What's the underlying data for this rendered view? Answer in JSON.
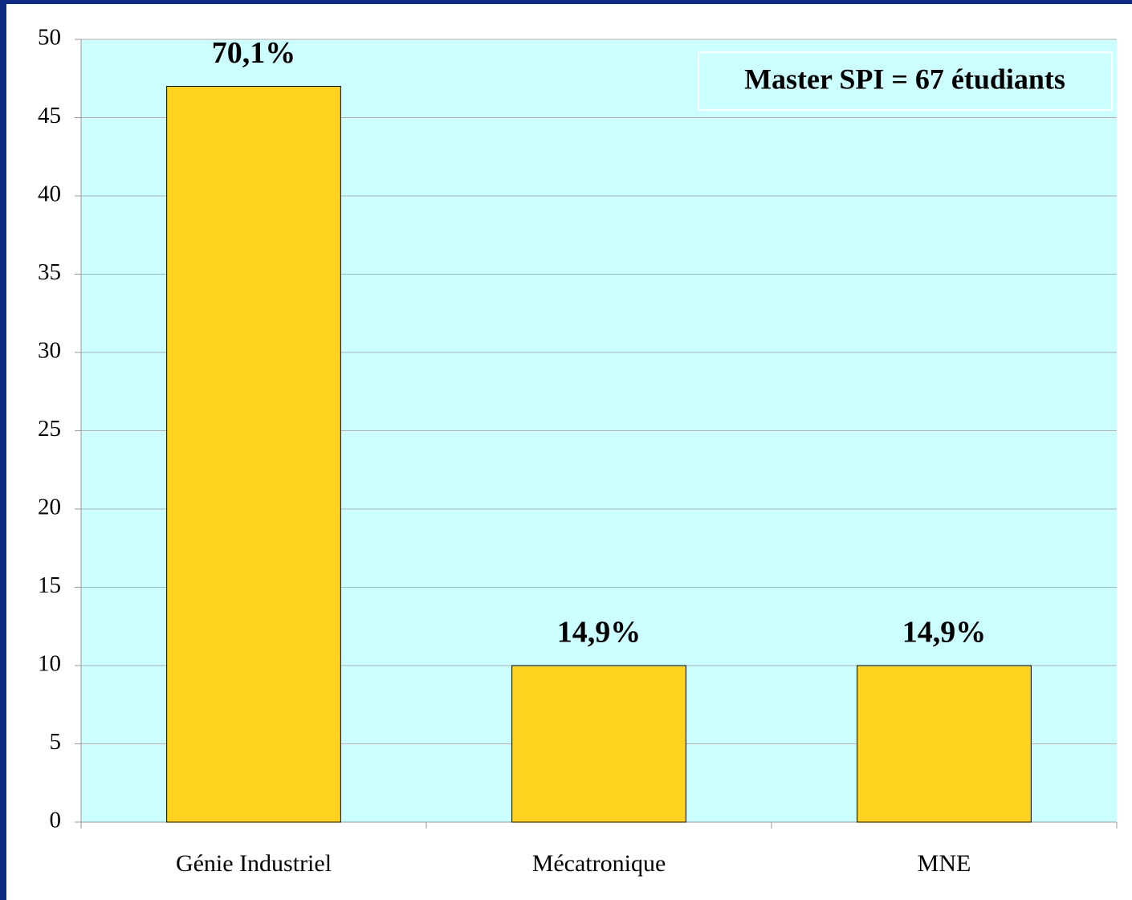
{
  "chart_data": {
    "type": "bar",
    "categories": [
      "Génie Industriel",
      "Mécatronique",
      "MNE"
    ],
    "values": [
      47,
      10,
      10
    ],
    "bar_labels": [
      "70,1%",
      "14,9%",
      "14,9%"
    ],
    "annotations": [
      "Master SPI = 67 étudiants"
    ],
    "color": "#ffd320",
    "plot_background": "#ccffff",
    "ylim": [
      0,
      50
    ],
    "yticks": [
      0,
      5,
      10,
      15,
      20,
      25,
      30,
      35,
      40,
      45,
      50
    ],
    "grid": true
  }
}
